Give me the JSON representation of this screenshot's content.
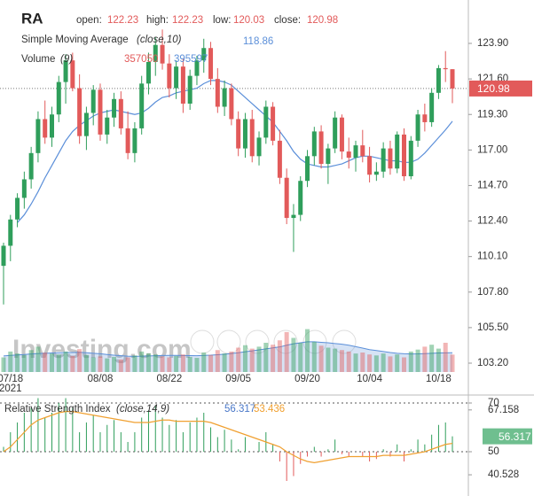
{
  "chart_data": {
    "type": "candlestick",
    "symbol": "RA",
    "legend_labels": {
      "open": "open:",
      "high": "high:",
      "low": "low:",
      "close": "close:"
    },
    "categories": [
      null,
      "07/18",
      null,
      null,
      null,
      null,
      null,
      null,
      null,
      null,
      null,
      null,
      null,
      null,
      "08/08",
      null,
      null,
      null,
      null,
      null,
      null,
      null,
      null,
      null,
      "08/22",
      null,
      null,
      null,
      null,
      null,
      null,
      null,
      null,
      null,
      "09/05",
      null,
      null,
      null,
      null,
      null,
      null,
      null,
      null,
      null,
      "09/20",
      null,
      null,
      null,
      null,
      null,
      null,
      null,
      null,
      "10/04",
      null,
      null,
      null,
      null,
      null,
      null,
      null,
      null,
      null,
      "10/18",
      null,
      null
    ],
    "year_label": "2021",
    "open": [
      109.5,
      110.8,
      112.5,
      113.9,
      115.1,
      116.8,
      119,
      117.8,
      119.3,
      121.4,
      122.8,
      121,
      117.9,
      119.4,
      120.9,
      118,
      119.1,
      120.3,
      118.4,
      116.8,
      118.4,
      121.3,
      122.7,
      123.8,
      122.6,
      121,
      122.4,
      120,
      121.8,
      122.8,
      123.6,
      121.6,
      119.8,
      121,
      119,
      117.1,
      119,
      116.6,
      117.8,
      119.8,
      117.6,
      115.2,
      112.6,
      112.8,
      115,
      116.6,
      118.2,
      116.1,
      117.1,
      119.1,
      116.9,
      116.5,
      117.3,
      116.6,
      115.4,
      115.6,
      117.1,
      115.8,
      118,
      115.3,
      117.6,
      119.3,
      118.8,
      120.7,
      122.3,
      122.23
    ],
    "high": [
      111,
      112.8,
      114.2,
      115.6,
      117.2,
      119.5,
      120.2,
      119.8,
      121.8,
      123.2,
      123.3,
      121.9,
      119.8,
      121.2,
      121.3,
      119.6,
      120.7,
      120.8,
      119.5,
      118.8,
      121.8,
      123.3,
      124.3,
      124.8,
      123.2,
      122.8,
      122.9,
      122.2,
      123.1,
      124.2,
      124,
      122.3,
      121.5,
      121.3,
      119.5,
      119.4,
      119.6,
      118.2,
      120.2,
      120.1,
      118.3,
      115.8,
      113.5,
      115.3,
      117,
      118.5,
      118.6,
      117.4,
      119.5,
      119.3,
      117.8,
      117.6,
      118.3,
      117.2,
      116.2,
      117.5,
      117.6,
      118.2,
      118.4,
      117.9,
      119.6,
      120,
      121,
      122.5,
      123.4,
      122.23
    ],
    "low": [
      107,
      109.8,
      112,
      113.2,
      114.5,
      116.2,
      117.4,
      117.2,
      118.8,
      120,
      120.8,
      117.4,
      117,
      118.6,
      117.6,
      117.4,
      118.5,
      118,
      116.4,
      116.2,
      118,
      120.6,
      121.8,
      122.2,
      120.4,
      120.3,
      119.4,
      119.6,
      121.2,
      122,
      121.2,
      119.4,
      119.2,
      118.6,
      116.6,
      116.5,
      116.2,
      116,
      117.4,
      117.3,
      114.8,
      112.2,
      110.4,
      112.4,
      114.6,
      116,
      115.8,
      114.8,
      116.8,
      116.4,
      115.8,
      115.6,
      116.2,
      114.9,
      115,
      115.2,
      115.4,
      115.5,
      115,
      115.1,
      117.2,
      118.2,
      118.5,
      120.3,
      121.4,
      120.03
    ],
    "close": [
      110.8,
      112.5,
      113.9,
      115.1,
      116.8,
      119,
      117.8,
      119.3,
      121.4,
      122.8,
      121,
      117.9,
      119.4,
      120.9,
      118,
      119.1,
      120.3,
      118.4,
      116.8,
      118.4,
      121.3,
      122.7,
      123.8,
      122.6,
      121,
      122.4,
      120,
      121.8,
      122.8,
      123.6,
      121.6,
      119.8,
      121,
      119,
      117.1,
      119,
      116.6,
      117.8,
      119.8,
      117.6,
      115.2,
      112.6,
      112.8,
      115,
      116.6,
      118.2,
      116.1,
      117.1,
      119.1,
      116.9,
      116.5,
      117.3,
      116.6,
      115.4,
      115.6,
      117.1,
      115.8,
      118,
      115.3,
      117.6,
      119.3,
      118.8,
      120.7,
      122.3,
      122.23,
      120.98
    ],
    "up_color": "#2f9e5b",
    "down_color": "#e25a5a",
    "ylim": [
      102.34,
      126.71
    ],
    "yticks": [
      {
        "value": 123.9,
        "label": "123.90"
      },
      {
        "value": 121.6,
        "label": "121.60"
      },
      {
        "value": 119.3,
        "label": "119.30"
      },
      {
        "value": 117,
        "label": "117.00"
      },
      {
        "value": 114.7,
        "label": "114.70"
      },
      {
        "value": 112.4,
        "label": "112.40"
      },
      {
        "value": 110.1,
        "label": "110.10"
      },
      {
        "value": 107.8,
        "label": "107.80"
      },
      {
        "value": 105.5,
        "label": "105.50"
      },
      {
        "value": 103.2,
        "label": "103.20"
      }
    ],
    "sma": {
      "name": "Simple Moving Average",
      "params": "(close,10)",
      "color": "#5b8fd9",
      "values": [
        null,
        null,
        112.3,
        112.8,
        113.5,
        114.3,
        115.2,
        116.0,
        116.8,
        117.6,
        118.2,
        118.6,
        118.9,
        119.2,
        119.4,
        119.5,
        119.6,
        119.5,
        119.4,
        119.3,
        119.4,
        119.7,
        120.1,
        120.4,
        120.5,
        120.7,
        120.8,
        120.9,
        121.0,
        121.3,
        121.5,
        121.5,
        121.4,
        121.2,
        120.8,
        120.4,
        120.0,
        119.6,
        119.2,
        118.8,
        118.2,
        117.6,
        116.9,
        116.4,
        116.1,
        116.0,
        115.9,
        115.9,
        116.0,
        116.1,
        116.3,
        116.5,
        116.6,
        116.6,
        116.5,
        116.4,
        116.3,
        116.3,
        116.2,
        116.2,
        116.4,
        116.8,
        117.3,
        117.8,
        118.3,
        118.86
      ]
    },
    "volume": {
      "name": "Volume",
      "params": "(9)",
      "ylim": [
        0,
        1000000
      ],
      "ma_color": "#5b8fd9",
      "values": [
        300000,
        420000,
        380000,
        350000,
        450000,
        520000,
        400000,
        380000,
        360000,
        420000,
        330000,
        470000,
        350000,
        300000,
        320000,
        280000,
        310000,
        260000,
        300000,
        340000,
        420000,
        380000,
        360000,
        320000,
        300000,
        330000,
        360000,
        310000,
        290000,
        400000,
        350000,
        450000,
        380000,
        420000,
        500000,
        550000,
        480000,
        520000,
        600000,
        560000,
        650000,
        820000,
        700000,
        600000,
        880000,
        620000,
        540000,
        500000,
        480000,
        450000,
        420000,
        380000,
        400000,
        360000,
        340000,
        380000,
        320000,
        360000,
        300000,
        420000,
        460000,
        520000,
        560000,
        480000,
        600000,
        357050
      ],
      "ma_values": [
        330000,
        340000,
        350000,
        360000,
        370000,
        380000,
        385000,
        390000,
        395000,
        400000,
        400000,
        405000,
        395000,
        385000,
        375000,
        360000,
        345000,
        335000,
        325000,
        320000,
        325000,
        330000,
        335000,
        338000,
        340000,
        340000,
        338000,
        336000,
        335000,
        340000,
        345000,
        355000,
        365000,
        380000,
        395000,
        415000,
        435000,
        455000,
        475000,
        495000,
        515000,
        550000,
        580000,
        600000,
        620000,
        620000,
        610000,
        600000,
        585000,
        570000,
        550000,
        520000,
        490000,
        460000,
        440000,
        420000,
        400000,
        385000,
        375000,
        370000,
        372000,
        378000,
        385000,
        390000,
        393000,
        395597
      ]
    },
    "rsi": {
      "name": "Relative Strength Index",
      "params": "(close,14,9)",
      "color": "#4a78c8",
      "ma_color": "#f0a030",
      "ylim": [
        31.82,
        71.09
      ],
      "yticks": [
        70,
        67.158,
        50,
        40.528
      ],
      "values": [
        52,
        58,
        62,
        66,
        68,
        72,
        64,
        66,
        70,
        72,
        68,
        58,
        62,
        65,
        58,
        61,
        63,
        58,
        54,
        58,
        64,
        67,
        69,
        64,
        61,
        63,
        58,
        62,
        64,
        66,
        60,
        56,
        59,
        55,
        51,
        56,
        50,
        54,
        58,
        53,
        46,
        38,
        40,
        45,
        48,
        52,
        48,
        51,
        55,
        49,
        48,
        50,
        48,
        46,
        47,
        51,
        48,
        53,
        46,
        51,
        55,
        53,
        57,
        61,
        62,
        56.317
      ],
      "ma_values": [
        50,
        52,
        55,
        58,
        61,
        63,
        64,
        65,
        66,
        66.5,
        66.5,
        66,
        65.5,
        65,
        64.5,
        64,
        63.5,
        63,
        62.5,
        62,
        62,
        62,
        62.5,
        63,
        63,
        62.5,
        62.5,
        62.5,
        62.5,
        62.5,
        62,
        61,
        60,
        59,
        58,
        57,
        56,
        55,
        54,
        53,
        52,
        50,
        48.5,
        47,
        46,
        45.5,
        46,
        46.5,
        47,
        47.5,
        48,
        48,
        48,
        48,
        48,
        48.5,
        48.5,
        48.5,
        48.5,
        49,
        49.5,
        50,
        51,
        52,
        53,
        53.436
      ]
    },
    "watermark": "Investing.com"
  }
}
